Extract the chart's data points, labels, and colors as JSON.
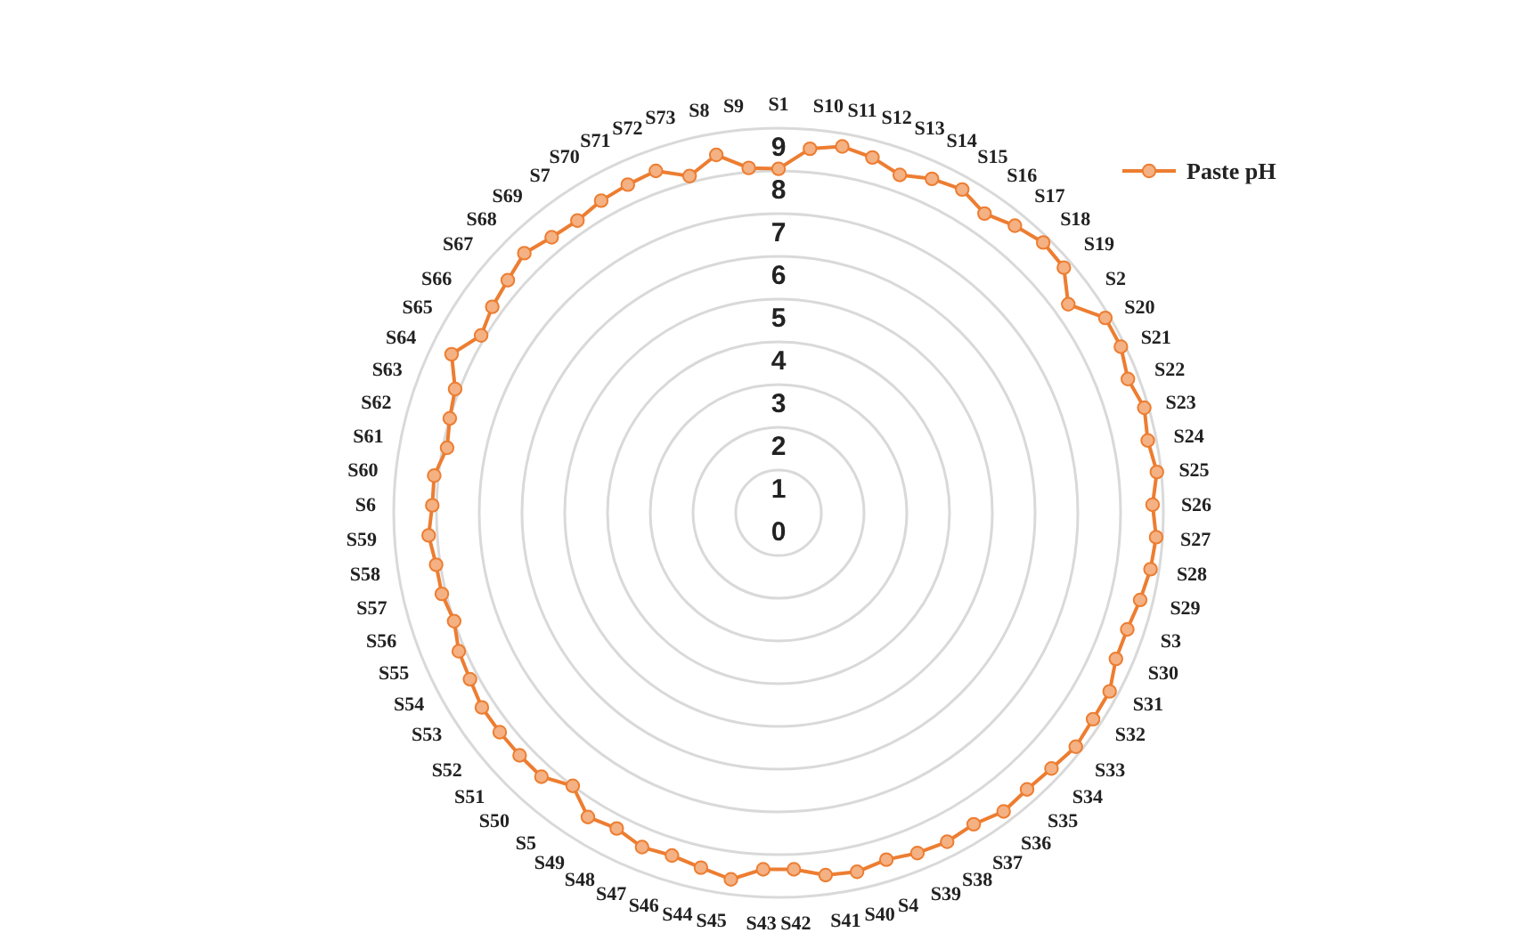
{
  "chart_data": {
    "type": "radar",
    "categories": [
      "S1",
      "S10",
      "S11",
      "S12",
      "S13",
      "S14",
      "S15",
      "S16",
      "S17",
      "S18",
      "S19",
      "S2",
      "S20",
      "S21",
      "S22",
      "S23",
      "S24",
      "S25",
      "S26",
      "S27",
      "S28",
      "S29",
      "S3",
      "S30",
      "S31",
      "S32",
      "S33",
      "S34",
      "S35",
      "S36",
      "S37",
      "S38",
      "S39",
      "S4",
      "S40",
      "S41",
      "S42",
      "S43",
      "S45",
      "S44",
      "S46",
      "S47",
      "S48",
      "S49",
      "S5",
      "S50",
      "S51",
      "S52",
      "S53",
      "S54",
      "S55",
      "S56",
      "S57",
      "S58",
      "S59",
      "S6",
      "S60",
      "S61",
      "S62",
      "S63",
      "S64",
      "S65",
      "S66",
      "S67",
      "S68",
      "S69",
      "S7",
      "S70",
      "S71",
      "S72",
      "S73",
      "S8",
      "S9"
    ],
    "series": [
      {
        "name": "Paste pH",
        "color": "#ed7d31",
        "values": [
          8.05,
          8.55,
          8.7,
          8.6,
          8.4,
          8.6,
          8.7,
          8.5,
          8.7,
          8.85,
          8.8,
          8.35,
          8.9,
          8.9,
          8.75,
          8.9,
          8.8,
          8.9,
          8.75,
          8.85,
          8.8,
          8.7,
          8.6,
          8.6,
          8.8,
          8.8,
          8.85,
          8.75,
          8.7,
          8.75,
          8.6,
          8.65,
          8.6,
          8.5,
          8.6,
          8.55,
          8.35,
          8.35,
          8.65,
          8.5,
          8.4,
          8.45,
          8.3,
          8.4,
          8.0,
          8.3,
          8.3,
          8.3,
          8.3,
          8.2,
          8.15,
          8.0,
          8.1,
          8.1,
          8.2,
          8.1,
          8.1,
          7.9,
          8.0,
          8.1,
          8.5,
          8.1,
          8.25,
          8.35,
          8.5,
          8.35,
          8.3,
          8.4,
          8.45,
          8.5,
          8.15,
          8.5,
          8.1
        ]
      }
    ],
    "ylim": [
      0,
      9
    ],
    "yticks": [
      0,
      1,
      2,
      3,
      4,
      5,
      6,
      7,
      8,
      9
    ],
    "grid": true,
    "legend": "top right",
    "marker": "circle",
    "line_style": "solid"
  }
}
